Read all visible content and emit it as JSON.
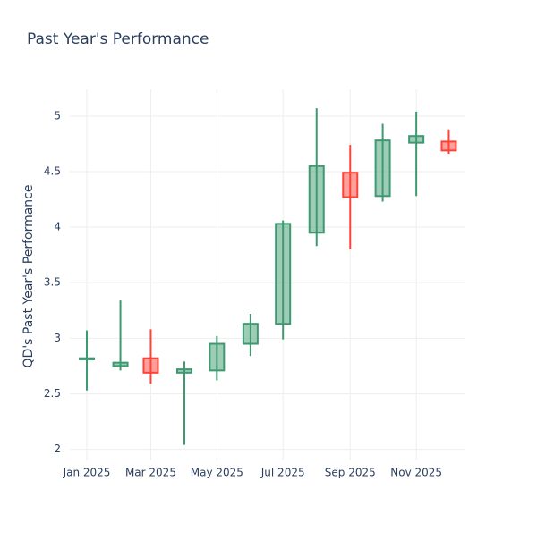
{
  "chart_data": {
    "type": "candlestick",
    "title": "Past Year's Performance",
    "y_label": "QD's Past Year's Performance",
    "x": [
      "2025-01",
      "2025-02",
      "2025-03",
      "2025-04",
      "2025-05",
      "2025-06",
      "2025-07",
      "2025-08",
      "2025-09",
      "2025-10",
      "2025-11",
      "2025-12"
    ],
    "open": [
      2.81,
      2.75,
      2.82,
      2.69,
      2.71,
      2.95,
      3.13,
      3.95,
      4.49,
      4.28,
      4.76,
      4.77
    ],
    "high": [
      3.07,
      3.34,
      3.08,
      2.79,
      3.02,
      3.22,
      4.06,
      5.07,
      4.74,
      4.93,
      5.04,
      4.88
    ],
    "low": [
      2.53,
      2.71,
      2.59,
      2.04,
      2.62,
      2.84,
      2.99,
      3.83,
      3.8,
      4.23,
      4.28,
      4.66
    ],
    "close": [
      2.82,
      2.78,
      2.69,
      2.72,
      2.95,
      3.13,
      4.03,
      4.55,
      4.27,
      4.78,
      4.82,
      4.69
    ],
    "increasing_color": "#3d9970",
    "decreasing_color": "#ff4136",
    "ylim": [
      1.9,
      5.24
    ],
    "yticks": [
      2,
      2.5,
      3,
      3.5,
      4,
      4.5,
      5
    ],
    "xticks": [
      {
        "value": "2025-01",
        "label": "Jan 2025"
      },
      {
        "value": "2025-03",
        "label": "Mar 2025"
      },
      {
        "value": "2025-05",
        "label": "May 2025"
      },
      {
        "value": "2025-07",
        "label": "Jul 2025"
      },
      {
        "value": "2025-09",
        "label": "Sep 2025"
      },
      {
        "value": "2025-11",
        "label": "Nov 2025"
      }
    ],
    "grid": true
  }
}
